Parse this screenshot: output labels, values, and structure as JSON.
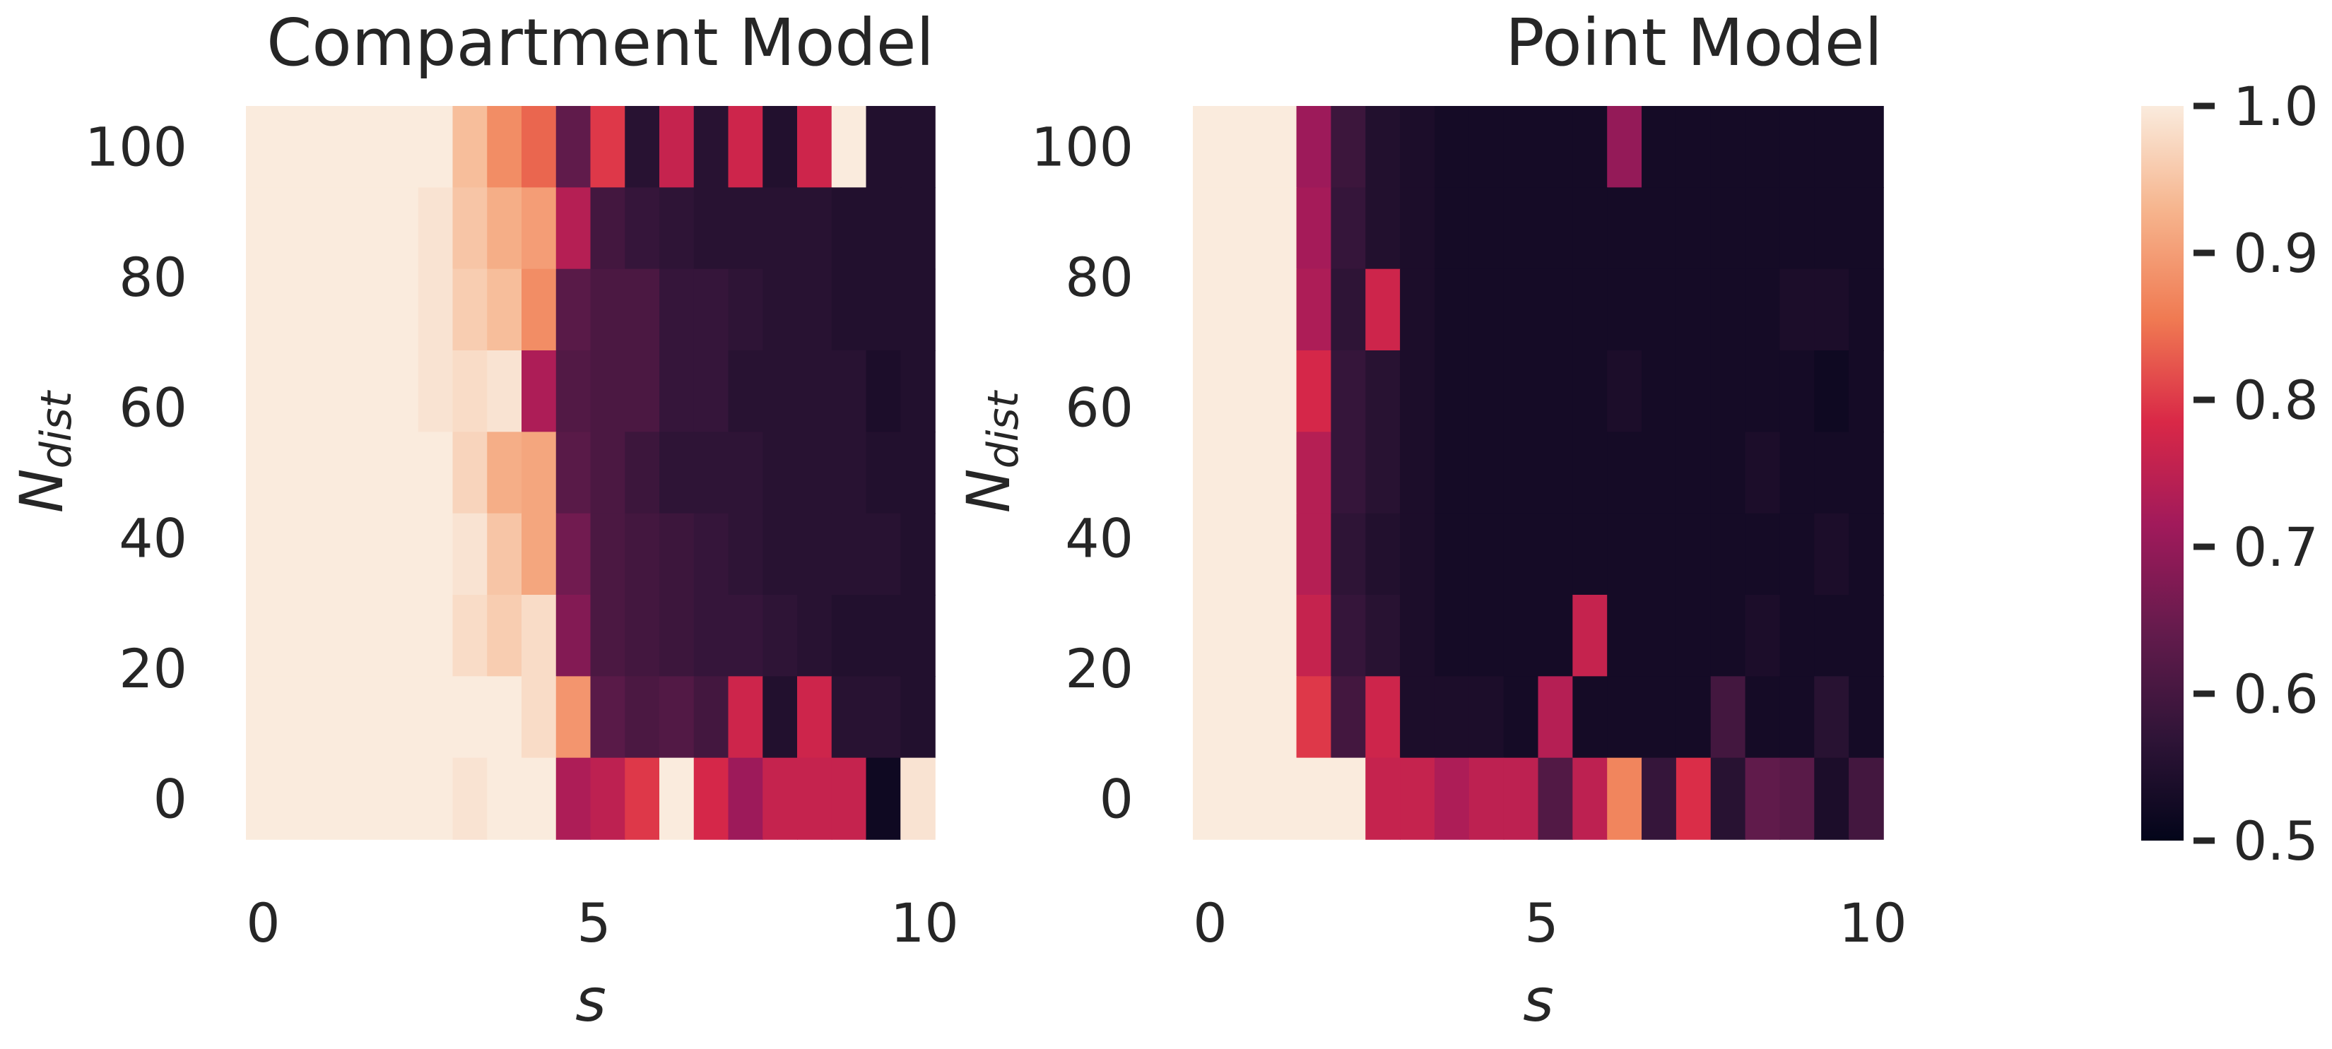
{
  "colors": {
    "text": "#262626",
    "colormap_stops": [
      "#03051a",
      "#2f1437",
      "#621b4c",
      "#a11a5b",
      "#d92847",
      "#f07a52",
      "#f6b58e",
      "#faebdd"
    ]
  },
  "chart_data": [
    {
      "type": "heatmap",
      "title": "Compartment Model",
      "xlabel": "s",
      "ylabel_main": "N",
      "ylabel_sub": "dist",
      "x_ticks": [
        "0",
        "5",
        "10"
      ],
      "y_ticks": [
        "100",
        "80",
        "60",
        "40",
        "20",
        "0"
      ],
      "x_range": [
        0,
        10
      ],
      "y_range": [
        0,
        100
      ],
      "rows_top_to_bottom": [
        "100",
        "87.5",
        "75",
        "62.5",
        "50",
        "37.5",
        "25",
        "12.5",
        "0"
      ],
      "values": [
        [
          1.0,
          1.0,
          1.0,
          1.0,
          1.0,
          1.0,
          0.94,
          0.88,
          0.84,
          0.64,
          0.8,
          0.56,
          0.76,
          0.56,
          0.77,
          0.55,
          0.77,
          1.0,
          0.55,
          0.55
        ],
        [
          1.0,
          1.0,
          1.0,
          1.0,
          1.0,
          0.99,
          0.95,
          0.92,
          0.9,
          0.74,
          0.6,
          0.58,
          0.57,
          0.56,
          0.56,
          0.56,
          0.56,
          0.55,
          0.55,
          0.55
        ],
        [
          1.0,
          1.0,
          1.0,
          1.0,
          1.0,
          0.99,
          0.96,
          0.94,
          0.88,
          0.63,
          0.61,
          0.61,
          0.58,
          0.58,
          0.57,
          0.56,
          0.56,
          0.55,
          0.55,
          0.55
        ],
        [
          1.0,
          1.0,
          1.0,
          1.0,
          1.0,
          0.99,
          0.98,
          0.99,
          0.73,
          0.62,
          0.61,
          0.61,
          0.58,
          0.58,
          0.56,
          0.56,
          0.56,
          0.56,
          0.54,
          0.55
        ],
        [
          1.0,
          1.0,
          1.0,
          1.0,
          1.0,
          1.0,
          0.97,
          0.92,
          0.91,
          0.63,
          0.61,
          0.59,
          0.57,
          0.57,
          0.57,
          0.56,
          0.56,
          0.56,
          0.55,
          0.55
        ],
        [
          1.0,
          1.0,
          1.0,
          1.0,
          1.0,
          1.0,
          0.99,
          0.95,
          0.91,
          0.66,
          0.61,
          0.6,
          0.59,
          0.58,
          0.57,
          0.56,
          0.56,
          0.56,
          0.56,
          0.55
        ],
        [
          1.0,
          1.0,
          1.0,
          1.0,
          1.0,
          1.0,
          0.98,
          0.96,
          0.98,
          0.68,
          0.61,
          0.6,
          0.59,
          0.58,
          0.58,
          0.57,
          0.56,
          0.55,
          0.55,
          0.55
        ],
        [
          1.0,
          1.0,
          1.0,
          1.0,
          1.0,
          1.0,
          1.0,
          1.0,
          0.98,
          0.89,
          0.63,
          0.61,
          0.62,
          0.6,
          0.77,
          0.55,
          0.77,
          0.56,
          0.56,
          0.55
        ],
        [
          1.0,
          1.0,
          1.0,
          1.0,
          1.0,
          1.0,
          0.99,
          1.0,
          1.0,
          0.73,
          0.75,
          0.8,
          1.0,
          0.78,
          0.71,
          0.76,
          0.76,
          0.76,
          0.52,
          0.99
        ]
      ]
    },
    {
      "type": "heatmap",
      "title": "Point Model",
      "xlabel": "s",
      "ylabel_main": "N",
      "ylabel_sub": "dist",
      "x_ticks": [
        "0",
        "5",
        "10"
      ],
      "y_ticks": [
        "100",
        "80",
        "60",
        "40",
        "20",
        "0"
      ],
      "x_range": [
        0,
        10
      ],
      "y_range": [
        0,
        100
      ],
      "rows_top_to_bottom": [
        "100",
        "87.5",
        "75",
        "62.5",
        "50",
        "37.5",
        "25",
        "12.5",
        "0"
      ],
      "values": [
        [
          1.0,
          1.0,
          1.0,
          0.71,
          0.59,
          0.55,
          0.54,
          0.53,
          0.53,
          0.53,
          0.53,
          0.53,
          0.7,
          0.53,
          0.53,
          0.53,
          0.53,
          0.53,
          0.53,
          0.53
        ],
        [
          1.0,
          1.0,
          1.0,
          0.72,
          0.58,
          0.55,
          0.54,
          0.53,
          0.53,
          0.53,
          0.53,
          0.53,
          0.53,
          0.53,
          0.53,
          0.53,
          0.53,
          0.53,
          0.53,
          0.53
        ],
        [
          1.0,
          1.0,
          1.0,
          0.73,
          0.57,
          0.77,
          0.54,
          0.53,
          0.53,
          0.53,
          0.53,
          0.53,
          0.53,
          0.53,
          0.53,
          0.53,
          0.53,
          0.54,
          0.54,
          0.53
        ],
        [
          1.0,
          1.0,
          1.0,
          0.78,
          0.58,
          0.56,
          0.54,
          0.53,
          0.53,
          0.53,
          0.53,
          0.53,
          0.54,
          0.53,
          0.53,
          0.53,
          0.53,
          0.53,
          0.52,
          0.53
        ],
        [
          1.0,
          1.0,
          1.0,
          0.74,
          0.58,
          0.56,
          0.54,
          0.53,
          0.53,
          0.53,
          0.53,
          0.53,
          0.53,
          0.53,
          0.53,
          0.53,
          0.54,
          0.53,
          0.53,
          0.53
        ],
        [
          1.0,
          1.0,
          1.0,
          0.74,
          0.57,
          0.55,
          0.54,
          0.53,
          0.53,
          0.53,
          0.53,
          0.53,
          0.53,
          0.53,
          0.53,
          0.53,
          0.53,
          0.53,
          0.54,
          0.53
        ],
        [
          1.0,
          1.0,
          1.0,
          0.76,
          0.58,
          0.56,
          0.54,
          0.53,
          0.53,
          0.53,
          0.53,
          0.76,
          0.53,
          0.53,
          0.53,
          0.53,
          0.54,
          0.53,
          0.53,
          0.53
        ],
        [
          1.0,
          1.0,
          1.0,
          0.8,
          0.6,
          0.77,
          0.54,
          0.54,
          0.54,
          0.53,
          0.74,
          0.53,
          0.53,
          0.53,
          0.53,
          0.6,
          0.53,
          0.53,
          0.56,
          0.53
        ],
        [
          1.0,
          1.0,
          1.0,
          1.0,
          1.0,
          0.76,
          0.76,
          0.73,
          0.75,
          0.75,
          0.62,
          0.75,
          0.87,
          0.58,
          0.79,
          0.56,
          0.64,
          0.63,
          0.54,
          0.6
        ]
      ]
    }
  ],
  "colorbar": {
    "ticks": [
      "1.0",
      "0.9",
      "0.8",
      "0.7",
      "0.6",
      "0.5"
    ],
    "range": [
      0.5,
      1.0
    ]
  }
}
